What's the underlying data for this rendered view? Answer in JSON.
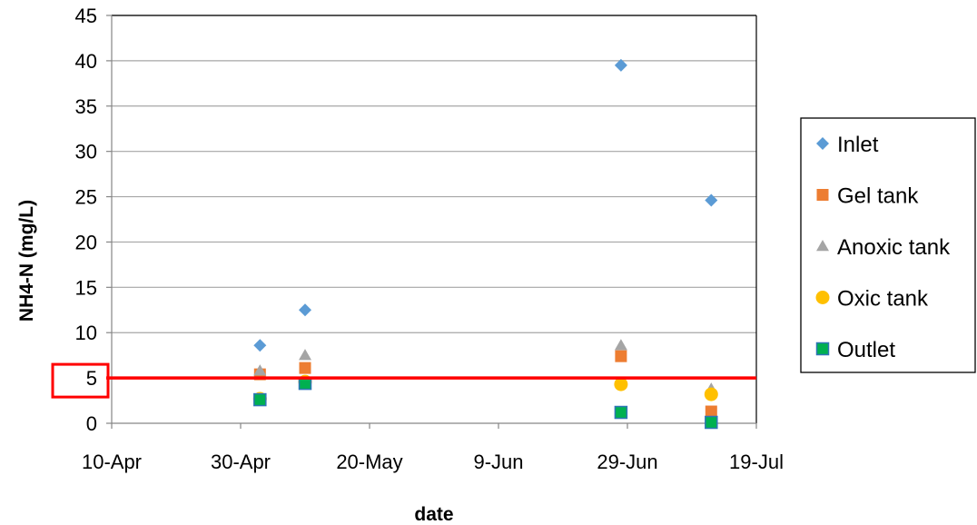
{
  "chart_data": {
    "type": "scatter",
    "xlabel": "date",
    "ylabel": "NH4-N (mg/L)",
    "x_axis": {
      "type": "date",
      "min": "2012-04-10",
      "max": "2012-07-19",
      "ticks": [
        {
          "date": "2012-04-10",
          "label": "10-Apr"
        },
        {
          "date": "2012-04-30",
          "label": "30-Apr"
        },
        {
          "date": "2012-05-20",
          "label": "20-May"
        },
        {
          "date": "2012-06-09",
          "label": "9-Jun"
        },
        {
          "date": "2012-06-29",
          "label": "29-Jun"
        },
        {
          "date": "2012-07-19",
          "label": "19-Jul"
        }
      ]
    },
    "y_axis": {
      "min": 0,
      "max": 45,
      "ticks": [
        0,
        5,
        10,
        15,
        20,
        25,
        30,
        35,
        40,
        45
      ],
      "gridlines": true
    },
    "legend": {
      "position": "right"
    },
    "reference_line": {
      "y": 5,
      "color": "#ff0000"
    },
    "highlight_box": {
      "label": "5",
      "color": "#ff0000"
    },
    "series": [
      {
        "name": "Inlet",
        "marker": "diamond",
        "color": "#5b9bd5",
        "points": [
          {
            "x": "2012-05-03",
            "y": 8.6
          },
          {
            "x": "2012-05-10",
            "y": 12.5
          },
          {
            "x": "2012-06-28",
            "y": 39.5
          },
          {
            "x": "2012-07-12",
            "y": 24.6
          }
        ]
      },
      {
        "name": "Gel tank",
        "marker": "square",
        "color": "#ed7d31",
        "points": [
          {
            "x": "2012-05-03",
            "y": 5.4
          },
          {
            "x": "2012-05-10",
            "y": 6.1
          },
          {
            "x": "2012-06-28",
            "y": 7.4
          },
          {
            "x": "2012-07-12",
            "y": 1.3
          }
        ]
      },
      {
        "name": "Anoxic tank",
        "marker": "triangle",
        "color": "#a5a5a5",
        "points": [
          {
            "x": "2012-05-03",
            "y": 5.8
          },
          {
            "x": "2012-05-10",
            "y": 7.5
          },
          {
            "x": "2012-06-28",
            "y": 8.6
          },
          {
            "x": "2012-07-12",
            "y": 3.8
          }
        ]
      },
      {
        "name": "Oxic tank",
        "marker": "circle",
        "color": "#ffc000",
        "points": [
          {
            "x": "2012-05-03",
            "y": 2.7
          },
          {
            "x": "2012-05-10",
            "y": 4.6
          },
          {
            "x": "2012-06-28",
            "y": 4.3
          },
          {
            "x": "2012-07-12",
            "y": 3.2
          }
        ]
      },
      {
        "name": "Outlet",
        "marker": "square",
        "color": "#00b050",
        "outline": "#2e75b6",
        "points": [
          {
            "x": "2012-05-03",
            "y": 2.6
          },
          {
            "x": "2012-05-10",
            "y": 4.4
          },
          {
            "x": "2012-06-28",
            "y": 1.2
          },
          {
            "x": "2012-07-12",
            "y": 0.1
          }
        ]
      }
    ]
  }
}
